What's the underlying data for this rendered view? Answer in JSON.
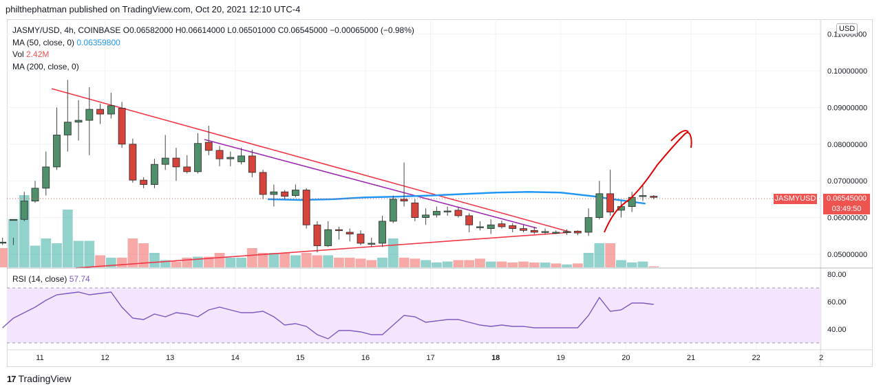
{
  "header": {
    "published": "philthephatman published on TradingView.com, Oct 20, 2021 12:10 UTC-4"
  },
  "legend": {
    "symbol": "JASMY/USD, 4h, COINBASE",
    "o_label": "O",
    "o": "0.06582000",
    "h_label": "H",
    "h": "0.06614000",
    "l_label": "L",
    "l": "0.06501000",
    "c_label": "C",
    "c": "0.06545000",
    "change": "−0.00065000 (−0.98%)",
    "ma50_label": "MA (50, close, 0)",
    "ma50_value": "0.06359800",
    "vol_label": "Vol",
    "vol_value": "2.42M",
    "ma200_label": "MA (200, close, 0)"
  },
  "price_axis": {
    "currency": "USD",
    "ticks": [
      "0.11000000",
      "0.10000000",
      "0.09000000",
      "0.08000000",
      "0.07000000",
      "0.06000000",
      "0.05000000"
    ],
    "tick_values": [
      0.11,
      0.1,
      0.09,
      0.08,
      0.07,
      0.06,
      0.05
    ]
  },
  "last_price": {
    "symbol": "JASMYUSD",
    "price": "0.06545000",
    "countdown": "03:49:50"
  },
  "rsi": {
    "label": "RSI (14, close)",
    "value": "57.74",
    "ticks": [
      "80.00",
      "60.00",
      "40.00"
    ],
    "tick_values": [
      80,
      60,
      40
    ],
    "band": [
      30,
      70
    ]
  },
  "time_axis": {
    "labels": [
      "11",
      "12",
      "13",
      "14",
      "15",
      "16",
      "17",
      "18",
      "19",
      "20",
      "21",
      "22",
      "2"
    ]
  },
  "footer": {
    "brand": "TradingView"
  },
  "colors": {
    "up": "#26a69a",
    "down": "#ef5350",
    "ma50": "#2196f3",
    "trend_red": "#f23645",
    "trend_purple": "#9c27b0",
    "rsi_line": "#7e57c2",
    "rsi_band": "#f3e5fd"
  },
  "chart_data": {
    "type": "candlestick",
    "title": "JASMY/USD, 4h, COINBASE",
    "ylim": [
      0.046,
      0.113
    ],
    "candles": [
      [
        0.0533,
        0.0533,
        0.0525,
        0.0545
      ],
      [
        0.0595,
        0.0595,
        0.0545,
        0.0525
      ],
      [
        0.0595,
        0.0645,
        0.067,
        0.059
      ],
      [
        0.0645,
        0.068,
        0.07,
        0.064
      ],
      [
        0.068,
        0.0738,
        0.078,
        0.066
      ],
      [
        0.0738,
        0.0825,
        0.09,
        0.073
      ],
      [
        0.0825,
        0.086,
        0.0975,
        0.078
      ],
      [
        0.086,
        0.0865,
        0.092,
        0.081
      ],
      [
        0.0865,
        0.0895,
        0.0955,
        0.077
      ],
      [
        0.0895,
        0.0882,
        0.091,
        0.0855
      ],
      [
        0.0882,
        0.0905,
        0.094,
        0.087
      ],
      [
        0.0898,
        0.08,
        0.0915,
        0.079
      ],
      [
        0.08,
        0.0702,
        0.0815,
        0.0695
      ],
      [
        0.0702,
        0.069,
        0.071,
        0.068
      ],
      [
        0.069,
        0.0745,
        0.076,
        0.068
      ],
      [
        0.0745,
        0.0762,
        0.0825,
        0.073
      ],
      [
        0.0762,
        0.0738,
        0.079,
        0.07
      ],
      [
        0.0738,
        0.0725,
        0.077,
        0.072
      ],
      [
        0.0725,
        0.0802,
        0.083,
        0.072
      ],
      [
        0.0805,
        0.0783,
        0.085,
        0.077
      ],
      [
        0.0783,
        0.076,
        0.0795,
        0.074
      ],
      [
        0.076,
        0.0764,
        0.078,
        0.074
      ],
      [
        0.0752,
        0.0768,
        0.079,
        0.0745
      ],
      [
        0.0768,
        0.0723,
        0.0785,
        0.071
      ],
      [
        0.0723,
        0.0663,
        0.073,
        0.065
      ],
      [
        0.0663,
        0.067,
        0.069,
        0.063
      ],
      [
        0.067,
        0.0658,
        0.0675,
        0.065
      ],
      [
        0.066,
        0.0675,
        0.069,
        0.0655
      ],
      [
        0.0675,
        0.058,
        0.068,
        0.057
      ],
      [
        0.058,
        0.0523,
        0.059,
        0.0505
      ],
      [
        0.0523,
        0.0567,
        0.059,
        0.052
      ],
      [
        0.0567,
        0.0565,
        0.0575,
        0.054
      ],
      [
        0.056,
        0.0555,
        0.057,
        0.0535
      ],
      [
        0.0555,
        0.053,
        0.0565,
        0.0525
      ],
      [
        0.053,
        0.053,
        0.0545,
        0.052
      ],
      [
        0.053,
        0.059,
        0.0605,
        0.052
      ],
      [
        0.059,
        0.065,
        0.066,
        0.0585
      ],
      [
        0.065,
        0.0645,
        0.075,
        0.063
      ],
      [
        0.064,
        0.06,
        0.065,
        0.059
      ],
      [
        0.06,
        0.0607,
        0.0625,
        0.058
      ],
      [
        0.0607,
        0.0617,
        0.063,
        0.06
      ],
      [
        0.0617,
        0.0618,
        0.063,
        0.0605
      ],
      [
        0.062,
        0.0605,
        0.063,
        0.06
      ],
      [
        0.0605,
        0.058,
        0.0612,
        0.056
      ],
      [
        0.0575,
        0.0575,
        0.059,
        0.0565
      ],
      [
        0.057,
        0.058,
        0.0595,
        0.0555
      ],
      [
        0.0583,
        0.0575,
        0.0592,
        0.057
      ],
      [
        0.0578,
        0.057,
        0.0585,
        0.056
      ],
      [
        0.057,
        0.0565,
        0.058,
        0.056
      ],
      [
        0.0565,
        0.056,
        0.0575,
        0.0555
      ],
      [
        0.056,
        0.0562,
        0.057,
        0.0555
      ],
      [
        0.056,
        0.056,
        0.0565,
        0.0555
      ],
      [
        0.056,
        0.0562,
        0.0568,
        0.0553
      ],
      [
        0.0563,
        0.0558,
        0.0565,
        0.0552
      ],
      [
        0.056,
        0.06,
        0.0625,
        0.055
      ],
      [
        0.06,
        0.0665,
        0.07,
        0.0595
      ],
      [
        0.0665,
        0.0615,
        0.073,
        0.0605
      ],
      [
        0.062,
        0.063,
        0.0645,
        0.06
      ],
      [
        0.063,
        0.0655,
        0.067,
        0.0615
      ],
      [
        0.0658,
        0.066,
        0.069,
        0.0645
      ],
      [
        0.0658,
        0.0655,
        0.0661,
        0.065
      ]
    ],
    "ma50": [
      [
        14.5,
        0.065
      ],
      [
        15.0,
        0.0648
      ],
      [
        15.5,
        0.065
      ],
      [
        16.0,
        0.0655
      ],
      [
        16.5,
        0.0657
      ],
      [
        17.0,
        0.066
      ],
      [
        17.5,
        0.0664
      ],
      [
        18.0,
        0.0668
      ],
      [
        18.5,
        0.067
      ],
      [
        19.0,
        0.0668
      ],
      [
        19.5,
        0.0658
      ],
      [
        19.8,
        0.065
      ],
      [
        20.3,
        0.0638
      ]
    ],
    "volume": [
      0.4,
      1.0,
      1.5,
      0.45,
      0.6,
      0.5,
      1.2,
      0.55,
      0.55,
      0.25,
      0.2,
      0.2,
      0.6,
      0.5,
      0.3,
      0.15,
      0.12,
      0.2,
      0.22,
      0.22,
      0.3,
      0.2,
      0.2,
      0.4,
      0.3,
      0.3,
      0.3,
      0.25,
      0.3,
      0.25,
      0.25,
      0.2,
      0.2,
      0.18,
      0.15,
      0.2,
      0.6,
      0.2,
      0.18,
      0.15,
      0.1,
      0.12,
      0.15,
      0.15,
      0.18,
      0.12,
      0.12,
      0.1,
      0.12,
      0.1,
      0.1,
      0.08,
      0.06,
      0.08,
      0.3,
      0.5,
      0.5,
      0.15,
      0.1,
      0.12,
      0.02
    ],
    "volume_up": [
      0,
      1,
      1,
      1,
      1,
      1,
      1,
      1,
      1,
      0,
      1,
      0,
      0,
      0,
      1,
      1,
      0,
      0,
      1,
      0,
      0,
      1,
      1,
      0,
      0,
      1,
      0,
      1,
      0,
      0,
      1,
      0,
      0,
      0,
      0,
      1,
      1,
      0,
      0,
      1,
      1,
      1,
      0,
      0,
      0,
      1,
      0,
      0,
      0,
      0,
      1,
      0,
      1,
      0,
      1,
      1,
      0,
      1,
      1,
      1,
      0
    ],
    "rsi": [
      41,
      48,
      52,
      56,
      61,
      65,
      66,
      67,
      65,
      66,
      67,
      56,
      48,
      47,
      51,
      49,
      52,
      51,
      49,
      54,
      56,
      54,
      52,
      52,
      53,
      49,
      43,
      44,
      42,
      36,
      33,
      39,
      39,
      38,
      36,
      36,
      43,
      50,
      49,
      45,
      46,
      47,
      47,
      45,
      43,
      42,
      43,
      42,
      42,
      41,
      41,
      41,
      41,
      41,
      50,
      63,
      53,
      54,
      59,
      59,
      58
    ],
    "x_day_labels": [
      "11",
      "12",
      "13",
      "14",
      "15",
      "16",
      "17",
      "18",
      "19",
      "20",
      "21",
      "22",
      "2"
    ],
    "first_candle_day": 10.5
  }
}
